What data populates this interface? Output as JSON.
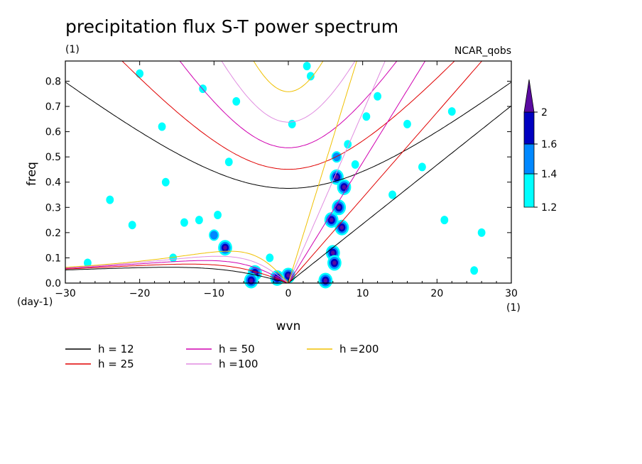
{
  "header": {
    "title": "precipitation flux S-T power spectrum",
    "units": "(1)",
    "dataset": "NCAR_qobs"
  },
  "chart_data": {
    "type": "heatmap",
    "title": "precipitation flux S-T power spectrum",
    "xlabel": "wvn",
    "ylabel": "freq",
    "x_unit_label": "(1)",
    "y_unit_label": "(day-1)",
    "xlim": [
      -30,
      30
    ],
    "ylim": [
      0,
      0.88
    ],
    "x_ticks": [
      -30,
      -20,
      -10,
      0,
      10,
      20,
      30
    ],
    "x_tick_labels": [
      "−30",
      "−20",
      "−10",
      "0",
      "10",
      "20",
      "30"
    ],
    "y_ticks": [
      0.0,
      0.1,
      0.2,
      0.3,
      0.4,
      0.5,
      0.6,
      0.7,
      0.8
    ],
    "y_tick_labels": [
      "0.0",
      "0.1",
      "0.2",
      "0.3",
      "0.4",
      "0.5",
      "0.6",
      "0.7",
      "0.8"
    ],
    "colorbar": {
      "levels": [
        1.2,
        1.4,
        1.6,
        2
      ],
      "labels": [
        "1.2",
        "1.4",
        "1.6",
        "2"
      ],
      "colors": [
        "#00ffff",
        "#0088ff",
        "#0000c0",
        "#5a0aa0"
      ]
    },
    "dispersion_curves": [
      {
        "label": "h = 12",
        "h": 12,
        "color": "#000000"
      },
      {
        "label": "h = 25",
        "h": 25,
        "color": "#e00000"
      },
      {
        "label": "h = 50",
        "h": 50,
        "color": "#d000b0"
      },
      {
        "label": "h =100",
        "h": 100,
        "color": "#e08ce0"
      },
      {
        "label": "h =200",
        "h": 200,
        "color": "#f0c000"
      }
    ],
    "blobs": [
      {
        "x": 6.5,
        "y": 0.42,
        "level": 3
      },
      {
        "x": 7.5,
        "y": 0.38,
        "level": 3
      },
      {
        "x": 6.8,
        "y": 0.3,
        "level": 3
      },
      {
        "x": 5.8,
        "y": 0.25,
        "level": 3
      },
      {
        "x": 7.2,
        "y": 0.22,
        "level": 3
      },
      {
        "x": 6.0,
        "y": 0.12,
        "level": 3
      },
      {
        "x": 6.2,
        "y": 0.08,
        "level": 3
      },
      {
        "x": 0.0,
        "y": 0.03,
        "level": 3
      },
      {
        "x": -1.5,
        "y": 0.02,
        "level": 3
      },
      {
        "x": -4.5,
        "y": 0.04,
        "level": 3
      },
      {
        "x": -5.0,
        "y": 0.01,
        "level": 3
      },
      {
        "x": 5.0,
        "y": 0.01,
        "level": 3
      },
      {
        "x": -8.5,
        "y": 0.14,
        "level": 3
      },
      {
        "x": -10.0,
        "y": 0.19,
        "level": 2
      },
      {
        "x": -12.0,
        "y": 0.25,
        "level": 1
      },
      {
        "x": -14.0,
        "y": 0.24,
        "level": 1
      },
      {
        "x": -9.5,
        "y": 0.27,
        "level": 1
      },
      {
        "x": 8.0,
        "y": 0.55,
        "level": 1
      },
      {
        "x": 6.5,
        "y": 0.5,
        "level": 2
      },
      {
        "x": 9.0,
        "y": 0.47,
        "level": 1
      },
      {
        "x": -11.5,
        "y": 0.77,
        "level": 1
      },
      {
        "x": -7.0,
        "y": 0.72,
        "level": 1
      },
      {
        "x": 12.0,
        "y": 0.74,
        "level": 1
      },
      {
        "x": -2.5,
        "y": 0.1,
        "level": 1
      },
      {
        "x": -21.0,
        "y": 0.23,
        "level": 1
      },
      {
        "x": -16.5,
        "y": 0.4,
        "level": 1
      },
      {
        "x": 16.0,
        "y": 0.63,
        "level": 1
      },
      {
        "x": 25.0,
        "y": 0.05,
        "level": 1
      },
      {
        "x": 26.0,
        "y": 0.2,
        "level": 1
      },
      {
        "x": -27.0,
        "y": 0.08,
        "level": 1
      },
      {
        "x": -24.0,
        "y": 0.33,
        "level": 1
      },
      {
        "x": 21.0,
        "y": 0.25,
        "level": 1
      },
      {
        "x": 14.0,
        "y": 0.35,
        "level": 1
      },
      {
        "x": 3.0,
        "y": 0.82,
        "level": 1
      },
      {
        "x": -17.0,
        "y": 0.62,
        "level": 1
      },
      {
        "x": 18.0,
        "y": 0.46,
        "level": 1
      },
      {
        "x": -20.0,
        "y": 0.83,
        "level": 1
      },
      {
        "x": 0.5,
        "y": 0.63,
        "level": 1
      },
      {
        "x": -8.0,
        "y": 0.48,
        "level": 1
      },
      {
        "x": 22.0,
        "y": 0.68,
        "level": 1
      },
      {
        "x": 10.5,
        "y": 0.66,
        "level": 1
      },
      {
        "x": 2.5,
        "y": 0.86,
        "level": 1
      },
      {
        "x": -15.5,
        "y": 0.1,
        "level": 1
      }
    ]
  }
}
